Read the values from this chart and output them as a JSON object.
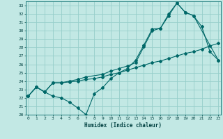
{
  "xlabel": "Humidex (Indice chaleur)",
  "bg_color": "#c2e8e4",
  "grid_color": "#96ceca",
  "line_color": "#006868",
  "xlim": [
    -0.3,
    23.3
  ],
  "ylim": [
    20,
    33.5
  ],
  "xticks": [
    0,
    1,
    2,
    3,
    4,
    5,
    6,
    7,
    8,
    9,
    10,
    11,
    12,
    13,
    14,
    15,
    16,
    17,
    18,
    19,
    20,
    21,
    22,
    23
  ],
  "yticks": [
    20,
    21,
    22,
    23,
    24,
    25,
    26,
    27,
    28,
    29,
    30,
    31,
    32,
    33
  ],
  "line1_x": [
    0,
    1,
    2,
    3,
    4,
    5,
    6,
    7,
    8,
    9,
    10,
    11,
    12,
    13,
    14,
    15,
    16,
    17,
    18,
    19,
    20,
    21,
    22,
    23
  ],
  "line1_y": [
    22.2,
    23.3,
    22.7,
    22.2,
    22.0,
    21.5,
    20.8,
    20.0,
    22.5,
    23.2,
    24.3,
    25.0,
    25.5,
    26.5,
    28.3,
    30.2,
    30.3,
    32.0,
    33.3,
    32.2,
    31.8,
    30.5,
    27.5,
    26.5
  ],
  "line2_x": [
    0,
    1,
    2,
    3,
    4,
    5,
    6,
    7,
    8,
    9,
    10,
    11,
    12,
    13,
    14,
    15,
    16,
    17,
    18,
    19,
    20,
    21,
    22,
    23
  ],
  "line2_y": [
    22.2,
    23.3,
    22.7,
    23.8,
    23.8,
    23.9,
    24.0,
    24.2,
    24.3,
    24.5,
    24.8,
    25.0,
    25.3,
    25.6,
    25.9,
    26.2,
    26.4,
    26.7,
    27.0,
    27.3,
    27.5,
    27.8,
    28.2,
    28.5
  ],
  "line3_x": [
    0,
    1,
    2,
    3,
    4,
    5,
    6,
    7,
    9,
    10,
    11,
    12,
    13,
    14,
    15,
    16,
    17,
    18,
    19,
    20,
    23
  ],
  "line3_y": [
    22.2,
    23.3,
    22.7,
    23.8,
    23.8,
    24.0,
    24.2,
    24.5,
    24.8,
    25.2,
    25.5,
    25.8,
    26.2,
    28.1,
    30.0,
    30.3,
    31.8,
    33.3,
    32.2,
    31.8,
    26.5
  ]
}
